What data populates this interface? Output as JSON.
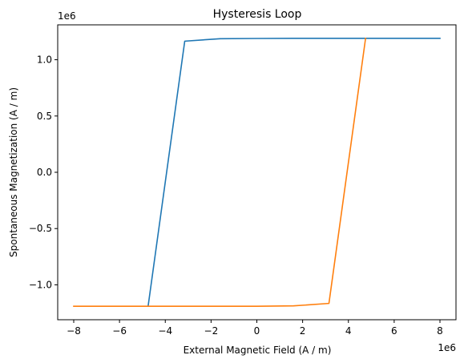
{
  "chart_data": {
    "type": "line",
    "title": "Hysteresis Loop",
    "xlabel": "External Magnetic Field (A / m)",
    "ylabel": "Spontaneous Magnetization (A / m)",
    "x_offset_label": "1e6",
    "y_offset_label": "1e6",
    "xlim": [
      -8.7,
      8.7
    ],
    "ylim": [
      -1.31,
      1.31
    ],
    "xticks": [
      -8,
      -6,
      -4,
      -2,
      0,
      2,
      4,
      6,
      8
    ],
    "xtick_labels": [
      "−8",
      "−6",
      "−4",
      "−2",
      "0",
      "2",
      "4",
      "6",
      "8"
    ],
    "yticks": [
      -1.0,
      -0.5,
      0.0,
      0.5,
      1.0
    ],
    "ytick_labels": [
      "−1.0",
      "−0.5",
      "0.0",
      "0.5",
      "1.0"
    ],
    "grid": false,
    "series": [
      {
        "color": "#1f77b4",
        "x": [
          -4.75,
          -3.15,
          -1.6,
          0,
          1.6,
          3.15,
          4.75,
          8.0
        ],
        "y": [
          -1.19,
          1.165,
          1.187,
          1.189,
          1.19,
          1.19,
          1.19,
          1.19
        ]
      },
      {
        "color": "#ff7f0e",
        "x": [
          -8.0,
          -4.75,
          -1.6,
          0,
          1.6,
          3.15,
          4.75
        ],
        "y": [
          -1.19,
          -1.19,
          -1.19,
          -1.19,
          -1.187,
          -1.165,
          1.19
        ]
      }
    ]
  }
}
